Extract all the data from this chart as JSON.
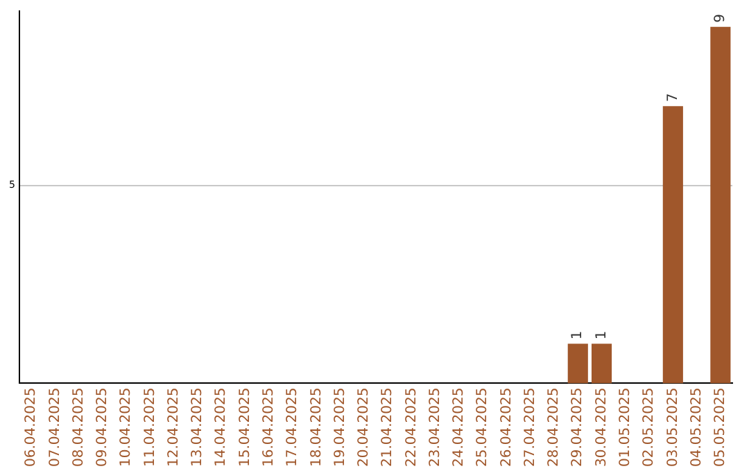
{
  "chart_data": {
    "type": "bar",
    "categories": [
      "06.04.2025",
      "07.04.2025",
      "08.04.2025",
      "09.04.2025",
      "10.04.2025",
      "11.04.2025",
      "12.04.2025",
      "13.04.2025",
      "14.04.2025",
      "15.04.2025",
      "16.04.2025",
      "17.04.2025",
      "18.04.2025",
      "19.04.2025",
      "20.04.2025",
      "21.04.2025",
      "22.04.2025",
      "23.04.2025",
      "24.04.2025",
      "25.04.2025",
      "26.04.2025",
      "27.04.2025",
      "28.04.2025",
      "29.04.2025",
      "30.04.2025",
      "01.05.2025",
      "02.05.2025",
      "03.05.2025",
      "04.05.2025",
      "05.05.2025"
    ],
    "values": [
      null,
      null,
      null,
      null,
      null,
      null,
      null,
      null,
      null,
      null,
      null,
      null,
      null,
      null,
      null,
      null,
      null,
      null,
      null,
      null,
      null,
      null,
      null,
      1,
      1,
      null,
      null,
      7,
      null,
      9
    ],
    "data_labels": true,
    "color": "#a0572b",
    "ylim": [
      0,
      9.4
    ],
    "yticks": [
      5
    ],
    "grid": "y",
    "legend": false
  }
}
